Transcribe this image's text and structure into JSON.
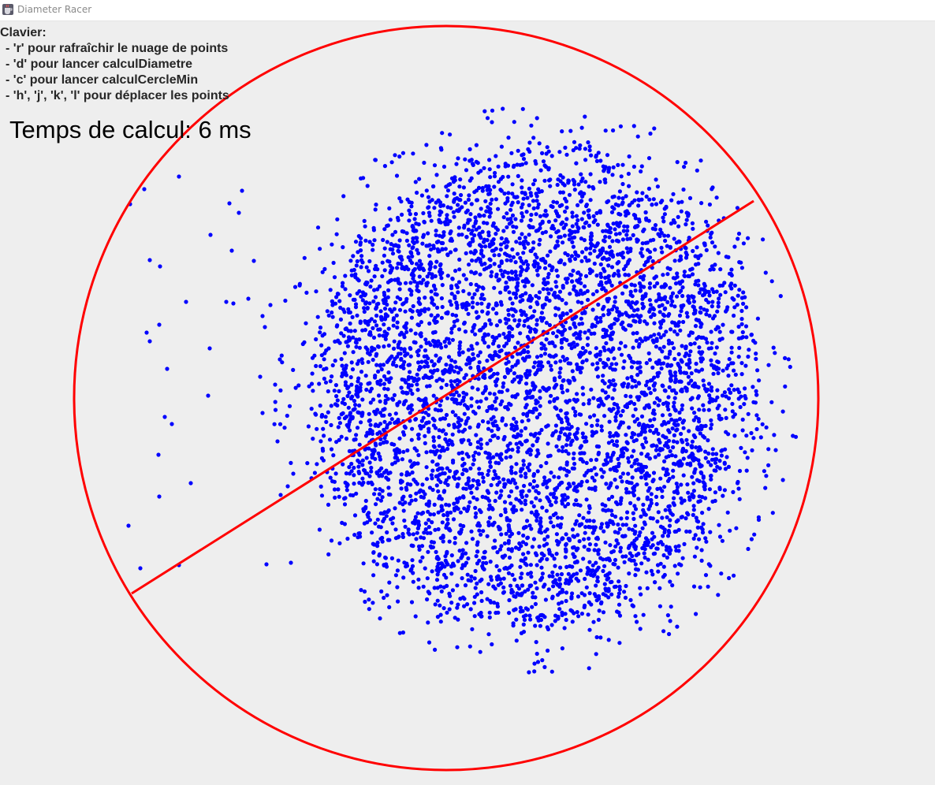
{
  "window": {
    "title": "Diameter Racer",
    "icon": "java-cup-icon"
  },
  "help": {
    "heading": "Clavier:",
    "lines": [
      "- 'r' pour rafraîchir le nuage de points",
      "- 'd' pour lancer calculDiametre",
      "- 'c' pour lancer calculCercleMin",
      "- 'h', 'j', 'k', 'l' pour déplacer les points"
    ]
  },
  "timing": {
    "label": "Temps de calcul: 6 ms"
  },
  "colors": {
    "background": "#eeeeee",
    "points": "#0000ff",
    "circle": "#ff0000",
    "diameter": "#ff0000"
  }
}
